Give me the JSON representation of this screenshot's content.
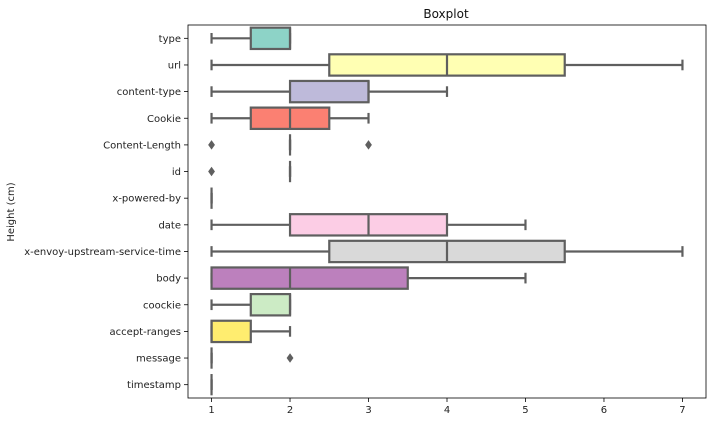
{
  "chart_data": {
    "type": "boxplot",
    "orientation": "horizontal",
    "title": "Boxplot",
    "xlabel": "",
    "ylabel": "Height (cm)",
    "xlim": [
      0.7,
      7.3
    ],
    "xticks": [
      1,
      2,
      3,
      4,
      5,
      6,
      7
    ],
    "grid": false,
    "line_color": "#5f5f5f",
    "categories": [
      "type",
      "url",
      "content-type",
      "Cookie",
      "Content-Length",
      "id",
      "x-powered-by",
      "date",
      "x-envoy-upstream-service-time",
      "body",
      "coockie",
      "accept-ranges",
      "message",
      "timestamp"
    ],
    "boxes": [
      {
        "label": "type",
        "whisker_low": 1,
        "q1": 1.5,
        "median": 2,
        "q3": 2,
        "whisker_high": 2,
        "outliers": [],
        "color": "#8dd3c7"
      },
      {
        "label": "url",
        "whisker_low": 1,
        "q1": 2.5,
        "median": 4,
        "q3": 5.5,
        "whisker_high": 7,
        "outliers": [],
        "color": "#ffffb3"
      },
      {
        "label": "content-type",
        "whisker_low": 1,
        "q1": 2,
        "median": 3,
        "q3": 3,
        "whisker_high": 4,
        "outliers": [],
        "color": "#bebada"
      },
      {
        "label": "Cookie",
        "whisker_low": 1,
        "q1": 1.5,
        "median": 2,
        "q3": 2.5,
        "whisker_high": 3,
        "outliers": [],
        "color": "#fb8072"
      },
      {
        "label": "Content-Length",
        "whisker_low": 2,
        "q1": 2,
        "median": 2,
        "q3": 2,
        "whisker_high": 2,
        "outliers": [
          1,
          3
        ],
        "color": "#80b1d3"
      },
      {
        "label": "id",
        "whisker_low": 2,
        "q1": 2,
        "median": 2,
        "q3": 2,
        "whisker_high": 2,
        "outliers": [
          1
        ],
        "color": "#fdb462"
      },
      {
        "label": "x-powered-by",
        "whisker_low": 1,
        "q1": 1,
        "median": 1,
        "q3": 1,
        "whisker_high": 1,
        "outliers": [],
        "color": "#b3de69"
      },
      {
        "label": "date",
        "whisker_low": 1,
        "q1": 2,
        "median": 3,
        "q3": 4,
        "whisker_high": 5,
        "outliers": [],
        "color": "#fccde5"
      },
      {
        "label": "x-envoy-upstream-service-time",
        "whisker_low": 1,
        "q1": 2.5,
        "median": 4,
        "q3": 5.5,
        "whisker_high": 7,
        "outliers": [],
        "color": "#d9d9d9"
      },
      {
        "label": "body",
        "whisker_low": 1,
        "q1": 1,
        "median": 2,
        "q3": 3.5,
        "whisker_high": 5,
        "outliers": [],
        "color": "#bc80bd"
      },
      {
        "label": "coockie",
        "whisker_low": 1,
        "q1": 1.5,
        "median": 2,
        "q3": 2,
        "whisker_high": 2,
        "outliers": [],
        "color": "#ccebc5"
      },
      {
        "label": "accept-ranges",
        "whisker_low": 1,
        "q1": 1,
        "median": 1,
        "q3": 1.5,
        "whisker_high": 2,
        "outliers": [],
        "color": "#ffed6f"
      },
      {
        "label": "message",
        "whisker_low": 1,
        "q1": 1,
        "median": 1,
        "q3": 1,
        "whisker_high": 1,
        "outliers": [
          2
        ],
        "color": "#8dd3c7"
      },
      {
        "label": "timestamp",
        "whisker_low": 1,
        "q1": 1,
        "median": 1,
        "q3": 1,
        "whisker_high": 1,
        "outliers": [],
        "color": "#ffffb3"
      }
    ]
  }
}
